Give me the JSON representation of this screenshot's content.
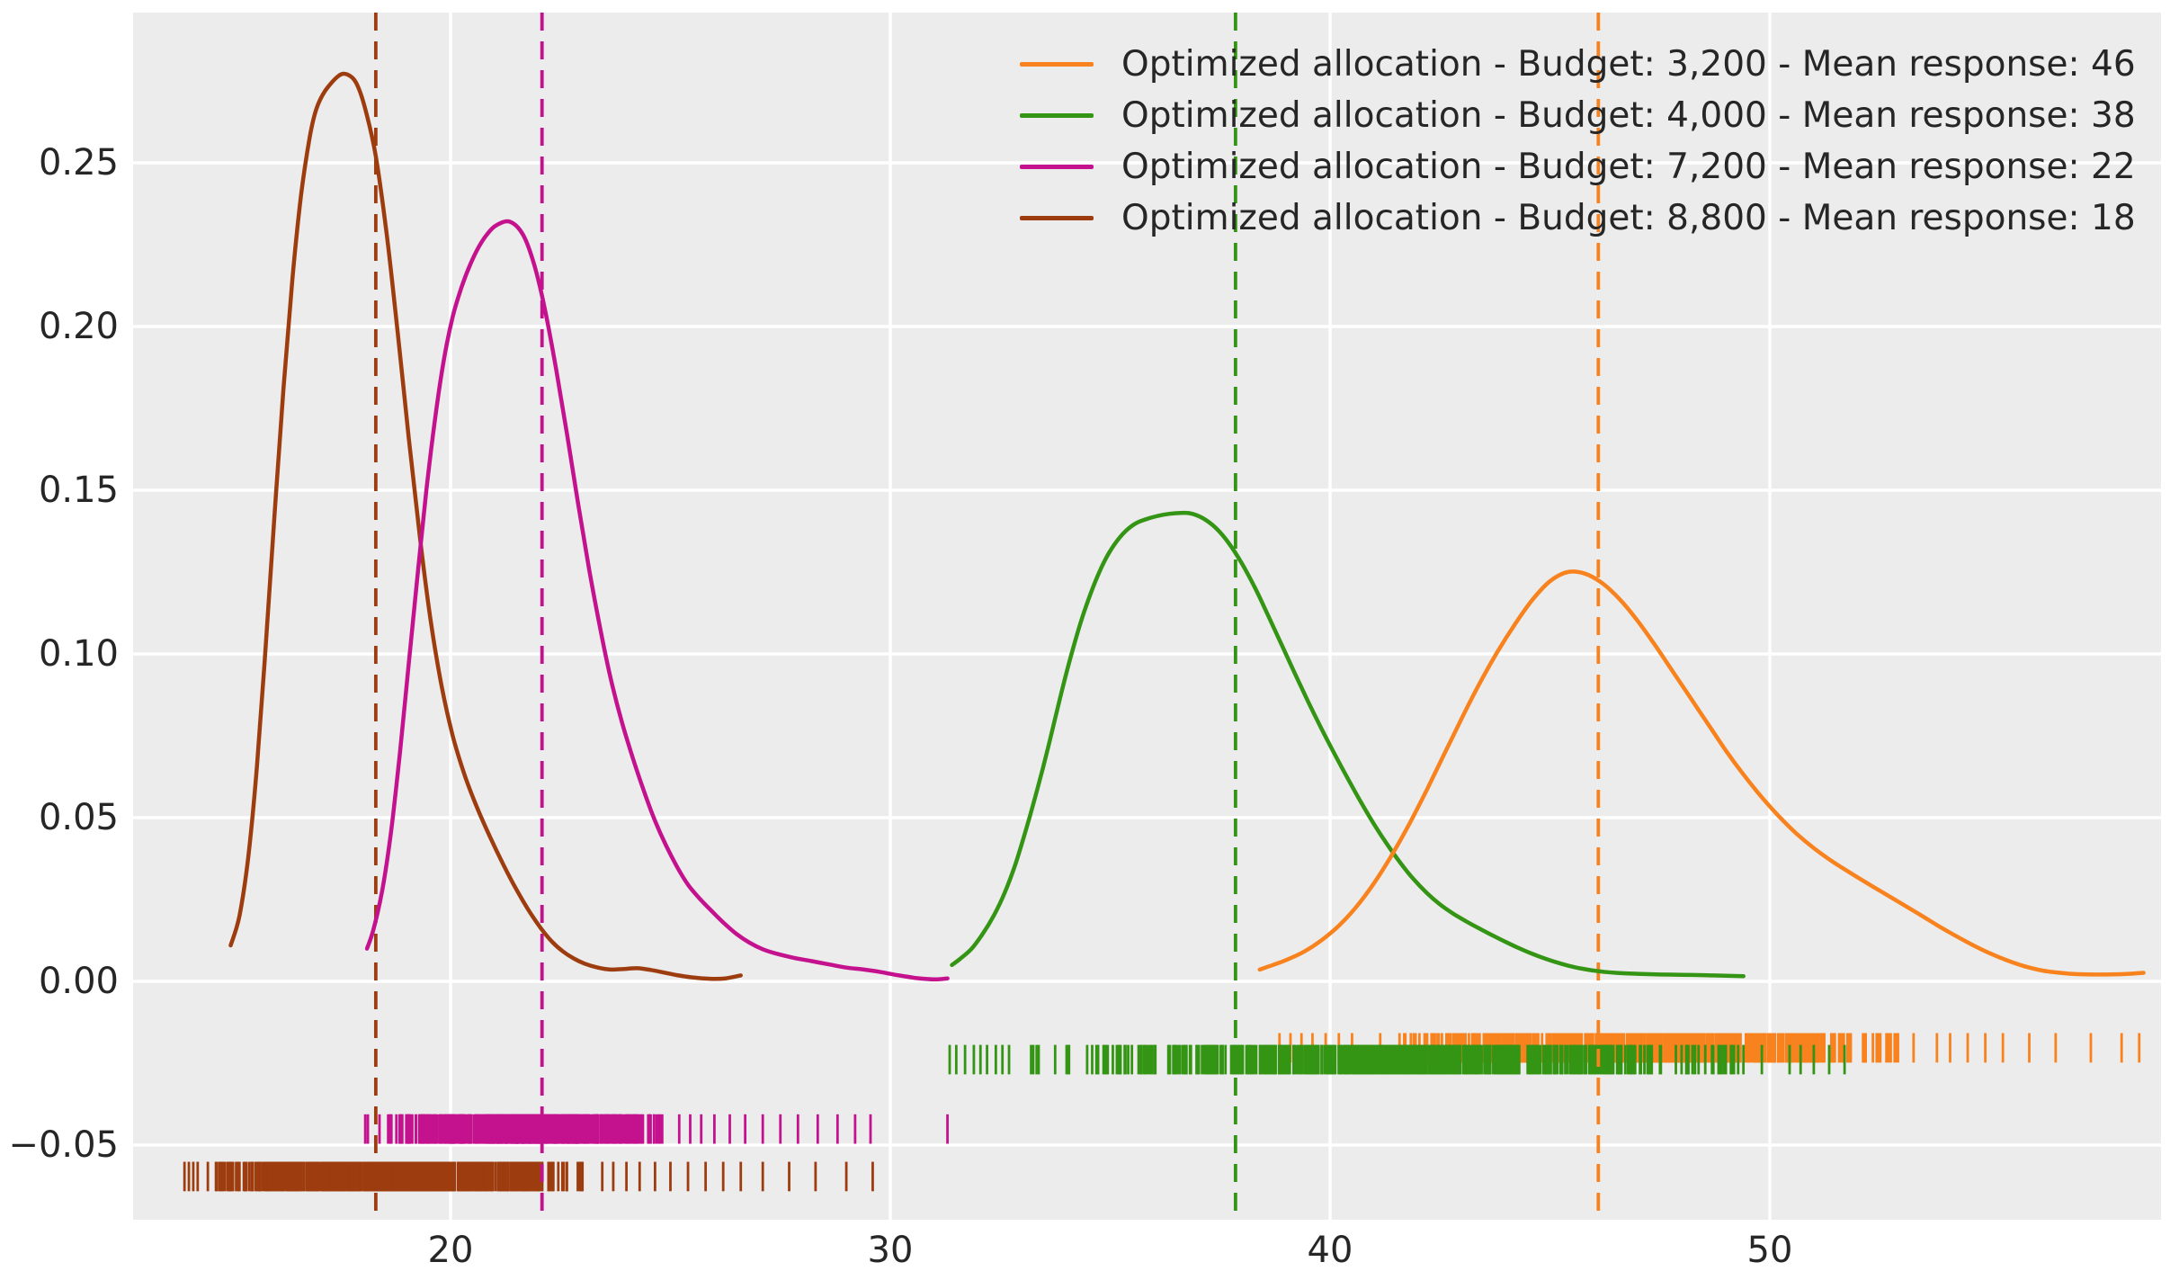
{
  "chart_data": {
    "type": "line",
    "subtype": "kde_with_rug",
    "title": "",
    "xlabel": "",
    "ylabel": "",
    "xlim": [
      12.8,
      58.9
    ],
    "ylim": [
      -0.073,
      0.296
    ],
    "grid": "on",
    "legend_position": "upper right",
    "background_color": "#ececec",
    "grid_color": "#ffffff",
    "text_color": "#262626",
    "x_ticks": [
      {
        "label": "20",
        "value": 20
      },
      {
        "label": "30",
        "value": 30
      },
      {
        "label": "40",
        "value": 40
      },
      {
        "label": "50",
        "value": 50
      }
    ],
    "y_ticks": [
      {
        "label": "0.25",
        "value": 0.25
      },
      {
        "label": "0.20",
        "value": 0.2
      },
      {
        "label": "0.15",
        "value": 0.15
      },
      {
        "label": "0.10",
        "value": 0.1
      },
      {
        "label": "0.05",
        "value": 0.05
      },
      {
        "label": "0.00",
        "value": 0.0
      },
      {
        "label": "−0.05",
        "value": -0.05
      }
    ],
    "series": [
      {
        "name": "budget-3200",
        "legend": "Optimized allocation - Budget: 3,200 - Mean response: 46",
        "budget": "3,200",
        "mean_response": 46,
        "color": "#f8821e",
        "mean_line_x": 46.1,
        "curve": [
          [
            38.4,
            0.0036
          ],
          [
            38.7,
            0.005
          ],
          [
            39.0,
            0.0065
          ],
          [
            39.4,
            0.009
          ],
          [
            39.8,
            0.0125
          ],
          [
            40.2,
            0.017
          ],
          [
            40.6,
            0.0228
          ],
          [
            41.0,
            0.03
          ],
          [
            41.4,
            0.0385
          ],
          [
            41.8,
            0.048
          ],
          [
            42.2,
            0.0585
          ],
          [
            42.6,
            0.0695
          ],
          [
            43.0,
            0.0805
          ],
          [
            43.4,
            0.091
          ],
          [
            43.8,
            0.1005
          ],
          [
            44.2,
            0.109
          ],
          [
            44.6,
            0.1165
          ],
          [
            45.0,
            0.1222
          ],
          [
            45.4,
            0.125
          ],
          [
            45.8,
            0.1245
          ],
          [
            46.2,
            0.1215
          ],
          [
            46.6,
            0.1165
          ],
          [
            47.0,
            0.11
          ],
          [
            47.4,
            0.1025
          ],
          [
            47.8,
            0.0945
          ],
          [
            48.2,
            0.0865
          ],
          [
            48.6,
            0.0785
          ],
          [
            49.0,
            0.0705
          ],
          [
            49.4,
            0.0632
          ],
          [
            49.8,
            0.0565
          ],
          [
            50.2,
            0.0505
          ],
          [
            50.6,
            0.0452
          ],
          [
            51.0,
            0.0407
          ],
          [
            51.4,
            0.0368
          ],
          [
            51.8,
            0.0334
          ],
          [
            52.2,
            0.0301
          ],
          [
            52.6,
            0.0269
          ],
          [
            53.0,
            0.0237
          ],
          [
            53.4,
            0.0205
          ],
          [
            53.8,
            0.0172
          ],
          [
            54.2,
            0.0141
          ],
          [
            54.6,
            0.0112
          ],
          [
            55.0,
            0.0086
          ],
          [
            55.4,
            0.0064
          ],
          [
            55.8,
            0.0046
          ],
          [
            56.2,
            0.0033
          ],
          [
            56.6,
            0.0026
          ],
          [
            57.0,
            0.0022
          ],
          [
            57.5,
            0.0021
          ],
          [
            58.0,
            0.0022
          ],
          [
            58.5,
            0.0026
          ]
        ],
        "rug": {
          "y_center": -0.0203,
          "tick_half_height": 0.0045,
          "dense_range": [
            40.9,
            53.55
          ],
          "dense_count": 550,
          "sparse": [
            38.85,
            39.1,
            39.35,
            39.6,
            39.9,
            40.2,
            40.5,
            53.8,
            54.1,
            54.5,
            54.9,
            55.3,
            55.9,
            56.5,
            57.3,
            58.0,
            58.4
          ]
        }
      },
      {
        "name": "budget-4000",
        "legend": "Optimized allocation - Budget: 4,000 - Mean response: 38",
        "budget": "4,000",
        "mean_response": 38,
        "color": "#349414",
        "mean_line_x": 37.85,
        "curve": [
          [
            31.4,
            0.005
          ],
          [
            31.6,
            0.007
          ],
          [
            31.85,
            0.01
          ],
          [
            32.1,
            0.0145
          ],
          [
            32.35,
            0.02
          ],
          [
            32.6,
            0.027
          ],
          [
            32.85,
            0.036
          ],
          [
            33.1,
            0.047
          ],
          [
            33.35,
            0.059
          ],
          [
            33.6,
            0.072
          ],
          [
            33.85,
            0.086
          ],
          [
            34.1,
            0.099
          ],
          [
            34.35,
            0.1105
          ],
          [
            34.6,
            0.12
          ],
          [
            34.85,
            0.1278
          ],
          [
            35.1,
            0.1335
          ],
          [
            35.35,
            0.1375
          ],
          [
            35.6,
            0.14
          ],
          [
            35.9,
            0.1415
          ],
          [
            36.2,
            0.1425
          ],
          [
            36.5,
            0.143
          ],
          [
            36.8,
            0.143
          ],
          [
            37.1,
            0.1415
          ],
          [
            37.4,
            0.1385
          ],
          [
            37.7,
            0.1338
          ],
          [
            38.0,
            0.1275
          ],
          [
            38.3,
            0.12
          ],
          [
            38.6,
            0.1115
          ],
          [
            38.9,
            0.1028
          ],
          [
            39.2,
            0.094
          ],
          [
            39.5,
            0.0855
          ],
          [
            39.8,
            0.0773
          ],
          [
            40.1,
            0.0695
          ],
          [
            40.4,
            0.062
          ],
          [
            40.7,
            0.0548
          ],
          [
            41.0,
            0.048
          ],
          [
            41.3,
            0.0418
          ],
          [
            41.6,
            0.0362
          ],
          [
            41.9,
            0.0312
          ],
          [
            42.2,
            0.027
          ],
          [
            42.5,
            0.0235
          ],
          [
            42.8,
            0.0207
          ],
          [
            43.1,
            0.0183
          ],
          [
            43.4,
            0.0161
          ],
          [
            43.7,
            0.014
          ],
          [
            44.0,
            0.012
          ],
          [
            44.3,
            0.0101
          ],
          [
            44.6,
            0.0084
          ],
          [
            44.9,
            0.0069
          ],
          [
            45.2,
            0.0056
          ],
          [
            45.5,
            0.0045
          ],
          [
            45.8,
            0.0037
          ],
          [
            46.1,
            0.0031
          ],
          [
            46.5,
            0.0026
          ],
          [
            47.0,
            0.0023
          ],
          [
            47.5,
            0.0021
          ],
          [
            48.0,
            0.002
          ],
          [
            48.5,
            0.0019
          ],
          [
            49.0,
            0.0017
          ],
          [
            49.4,
            0.0016
          ]
        ],
        "rug": {
          "y_center": -0.0239,
          "tick_half_height": 0.0045,
          "dense_range": [
            32.9,
            50.2
          ],
          "dense_count": 650,
          "sparse": [
            31.35,
            31.5,
            31.7,
            31.9,
            32.05,
            32.2,
            32.4,
            32.55,
            32.7,
            50.45,
            50.7,
            51.0,
            51.35,
            51.7
          ]
        }
      },
      {
        "name": "budget-7200",
        "legend": "Optimized allocation - Budget: 7,200 - Mean response: 22",
        "budget": "7,200",
        "mean_response": 22,
        "color": "#c4128f",
        "mean_line_x": 22.08,
        "curve": [
          [
            18.1,
            0.01
          ],
          [
            18.25,
            0.016
          ],
          [
            18.45,
            0.028
          ],
          [
            18.65,
            0.046
          ],
          [
            18.85,
            0.07
          ],
          [
            19.05,
            0.097
          ],
          [
            19.25,
            0.124
          ],
          [
            19.45,
            0.15
          ],
          [
            19.65,
            0.172
          ],
          [
            19.85,
            0.19
          ],
          [
            20.05,
            0.203
          ],
          [
            20.25,
            0.212
          ],
          [
            20.45,
            0.219
          ],
          [
            20.65,
            0.2245
          ],
          [
            20.85,
            0.2285
          ],
          [
            21.05,
            0.231
          ],
          [
            21.35,
            0.232
          ],
          [
            21.65,
            0.228
          ],
          [
            21.9,
            0.219
          ],
          [
            22.15,
            0.205
          ],
          [
            22.4,
            0.187
          ],
          [
            22.65,
            0.167
          ],
          [
            22.9,
            0.146
          ],
          [
            23.15,
            0.126
          ],
          [
            23.4,
            0.108
          ],
          [
            23.65,
            0.092
          ],
          [
            23.9,
            0.079
          ],
          [
            24.15,
            0.068
          ],
          [
            24.4,
            0.058
          ],
          [
            24.65,
            0.049
          ],
          [
            24.9,
            0.0415
          ],
          [
            25.15,
            0.035
          ],
          [
            25.4,
            0.0295
          ],
          [
            25.65,
            0.0255
          ],
          [
            25.9,
            0.022
          ],
          [
            26.2,
            0.018
          ],
          [
            26.5,
            0.0145
          ],
          [
            26.8,
            0.0118
          ],
          [
            27.1,
            0.0098
          ],
          [
            27.4,
            0.0085
          ],
          [
            27.8,
            0.0072
          ],
          [
            28.2,
            0.0062
          ],
          [
            28.6,
            0.0052
          ],
          [
            29.0,
            0.0042
          ],
          [
            29.4,
            0.0036
          ],
          [
            29.8,
            0.0028
          ],
          [
            30.2,
            0.0018
          ],
          [
            30.6,
            0.001
          ],
          [
            31.0,
            0.0006
          ],
          [
            31.3,
            0.0009
          ]
        ],
        "rug": {
          "y_center": -0.0451,
          "tick_half_height": 0.0045,
          "dense_range": [
            18.25,
            25.0
          ],
          "dense_count": 520,
          "sparse": [
            18.06,
            18.12,
            25.2,
            25.45,
            25.7,
            26.0,
            26.35,
            26.7,
            27.1,
            27.5,
            27.9,
            28.35,
            28.8,
            29.2,
            29.55,
            31.3
          ]
        }
      },
      {
        "name": "budget-8800",
        "legend": "Optimized allocation - Budget: 8,800 - Mean response: 18",
        "budget": "8,800",
        "mean_response": 18,
        "color": "#9d3d0f",
        "mean_line_x": 18.3,
        "curve": [
          [
            15.0,
            0.011
          ],
          [
            15.2,
            0.02
          ],
          [
            15.4,
            0.038
          ],
          [
            15.6,
            0.066
          ],
          [
            15.8,
            0.103
          ],
          [
            16.0,
            0.143
          ],
          [
            16.2,
            0.181
          ],
          [
            16.4,
            0.214
          ],
          [
            16.6,
            0.24
          ],
          [
            16.8,
            0.258
          ],
          [
            16.95,
            0.2665
          ],
          [
            17.15,
            0.272
          ],
          [
            17.45,
            0.2765
          ],
          [
            17.65,
            0.277
          ],
          [
            17.85,
            0.2745
          ],
          [
            18.05,
            0.267
          ],
          [
            18.3,
            0.252
          ],
          [
            18.55,
            0.228
          ],
          [
            18.8,
            0.198
          ],
          [
            19.05,
            0.166
          ],
          [
            19.3,
            0.136
          ],
          [
            19.55,
            0.11
          ],
          [
            19.8,
            0.09
          ],
          [
            20.05,
            0.075
          ],
          [
            20.3,
            0.0638
          ],
          [
            20.55,
            0.0548
          ],
          [
            20.8,
            0.047
          ],
          [
            21.05,
            0.0398
          ],
          [
            21.3,
            0.033
          ],
          [
            21.55,
            0.0268
          ],
          [
            21.8,
            0.0212
          ],
          [
            22.05,
            0.0163
          ],
          [
            22.3,
            0.0122
          ],
          [
            22.55,
            0.0092
          ],
          [
            22.8,
            0.007
          ],
          [
            23.05,
            0.0054
          ],
          [
            23.35,
            0.0042
          ],
          [
            23.65,
            0.0036
          ],
          [
            23.95,
            0.0038
          ],
          [
            24.25,
            0.004
          ],
          [
            24.55,
            0.0035
          ],
          [
            24.85,
            0.0027
          ],
          [
            25.15,
            0.0019
          ],
          [
            25.5,
            0.0012
          ],
          [
            25.9,
            0.0008
          ],
          [
            26.25,
            0.0009
          ],
          [
            26.6,
            0.0018
          ]
        ],
        "rug": {
          "y_center": -0.0596,
          "tick_half_height": 0.0045,
          "dense_range": [
            14.35,
            23.2
          ],
          "dense_count": 600,
          "sparse": [
            13.95,
            14.05,
            14.15,
            14.25,
            23.45,
            23.7,
            24.0,
            24.3,
            24.65,
            25.0,
            25.4,
            25.8,
            26.2,
            26.6,
            27.1,
            27.7,
            28.3,
            29.0,
            29.6
          ]
        }
      }
    ]
  }
}
